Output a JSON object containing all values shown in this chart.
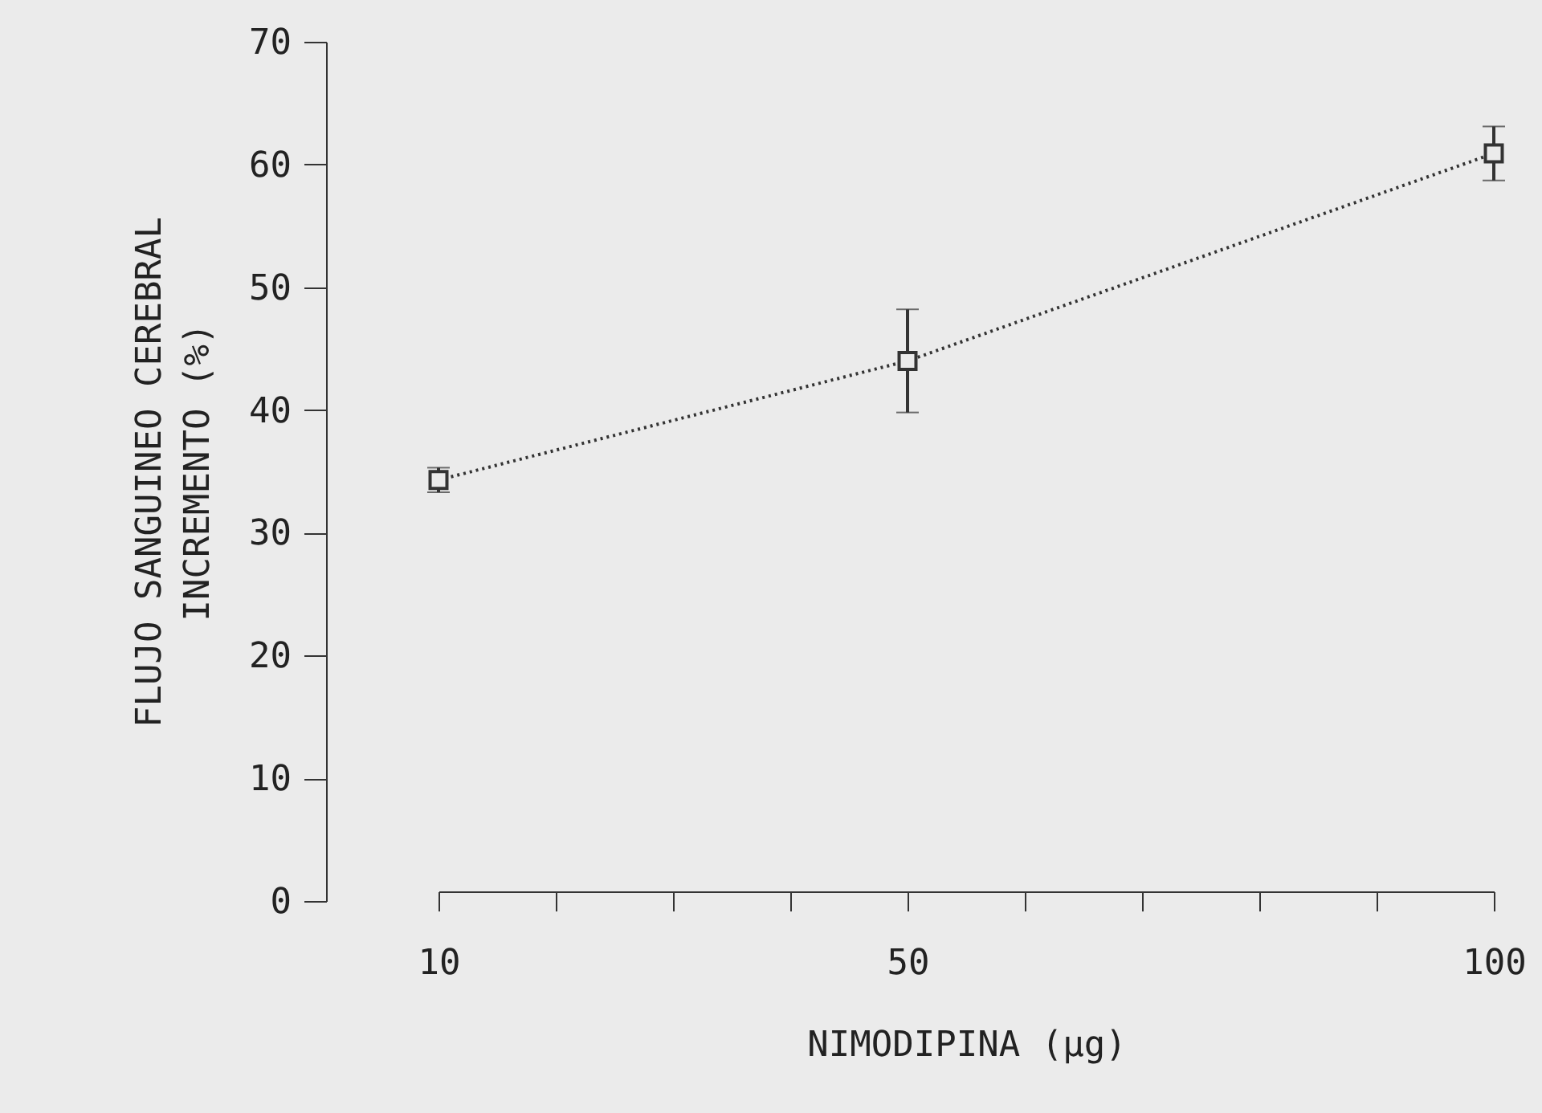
{
  "chart_data": {
    "type": "line",
    "xlabel": "NIMODIPINA (µg)",
    "ylabel": "FLUJO SANGUINEO CEREBRAL\nINCREMENTO (%)",
    "x": [
      10,
      50,
      100
    ],
    "series": [
      {
        "color": "#333333",
        "values": [
          34.3,
          44.0,
          60.9
        ],
        "errors": [
          1.0,
          4.2,
          2.2
        ]
      }
    ],
    "xlim": [
      10,
      100
    ],
    "xticks": [
      10,
      {
        "value": 20,
        "label": null
      },
      {
        "value": 30,
        "label": null
      },
      {
        "value": 40,
        "label": null
      },
      50,
      {
        "value": 60,
        "label": null
      },
      {
        "value": 70,
        "label": null
      },
      {
        "value": 80,
        "label": null
      },
      {
        "value": 90,
        "label": null
      },
      100
    ],
    "ylim": [
      0,
      70
    ],
    "yticks": [
      0,
      10,
      20,
      30,
      40,
      50,
      60,
      70
    ],
    "grid": false,
    "marker": "square",
    "line_style": "dotted"
  }
}
